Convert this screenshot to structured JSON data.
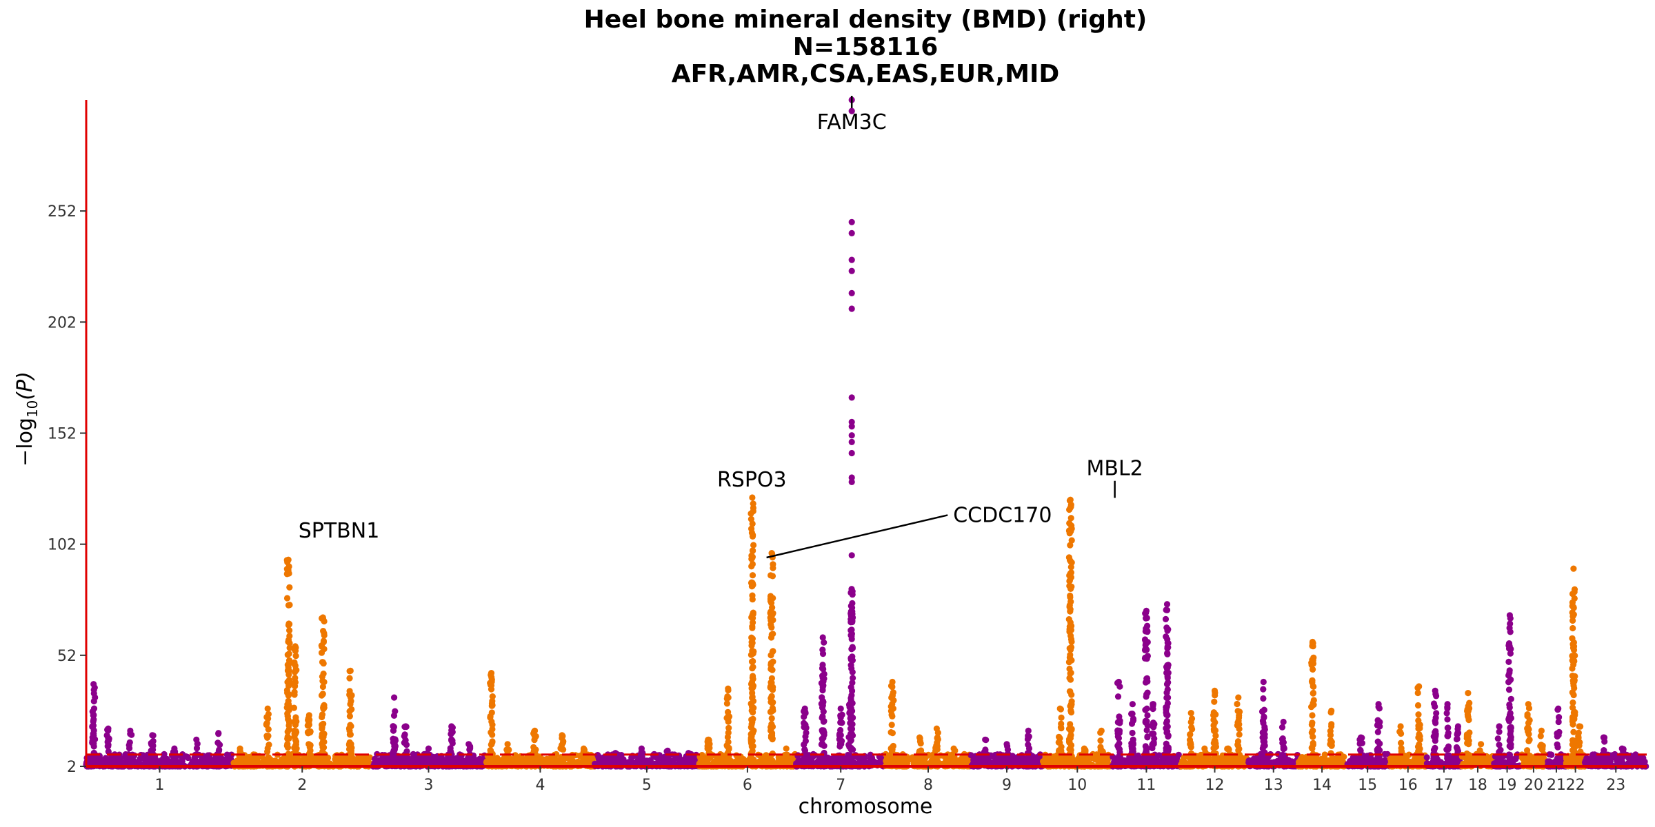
{
  "chart_data": {
    "type": "scatter",
    "title": [
      "Heel bone mineral density (BMD) (right)",
      "N=158116",
      "AFR,AMR,CSA,EAS,EUR,MID"
    ],
    "xlabel": "chromosome",
    "ylabel_main": "−log",
    "ylabel_sub": "10",
    "ylabel_paren": "(P)",
    "ylim": [
      2,
      302
    ],
    "yticks": [
      2,
      52,
      102,
      152,
      202,
      252
    ],
    "significance_line": 7.3,
    "grid": false,
    "colors": {
      "odd": "#8B008B",
      "even": "#EE7700",
      "line": "#E00000",
      "text": "#000000"
    },
    "chromosomes": [
      {
        "label": "1",
        "start": 0.0,
        "end": 1.0,
        "peaks": [
          [
            0.05,
            39
          ],
          [
            0.15,
            19
          ],
          [
            0.3,
            18
          ],
          [
            0.45,
            16
          ],
          [
            0.6,
            10
          ],
          [
            0.75,
            14
          ],
          [
            0.9,
            17
          ]
        ]
      },
      {
        "label": "2",
        "start": 1.0,
        "end": 1.94,
        "peaks": [
          [
            0.05,
            10
          ],
          [
            0.25,
            28
          ],
          [
            0.4,
            95
          ],
          [
            0.45,
            56
          ],
          [
            0.55,
            25
          ],
          [
            0.65,
            69
          ],
          [
            0.85,
            45
          ]
        ]
      },
      {
        "label": "3",
        "start": 1.94,
        "end": 2.72,
        "peaks": [
          [
            0.2,
            33
          ],
          [
            0.3,
            20
          ],
          [
            0.5,
            10
          ],
          [
            0.7,
            20
          ],
          [
            0.85,
            12
          ]
        ]
      },
      {
        "label": "4",
        "start": 2.72,
        "end": 3.46,
        "peaks": [
          [
            0.05,
            44
          ],
          [
            0.2,
            12
          ],
          [
            0.45,
            18
          ],
          [
            0.7,
            16
          ],
          [
            0.9,
            10
          ]
        ]
      },
      {
        "label": "5",
        "start": 3.46,
        "end": 4.17,
        "peaks": [
          [
            0.2,
            8
          ],
          [
            0.45,
            10
          ],
          [
            0.7,
            9
          ],
          [
            0.9,
            8
          ]
        ]
      },
      {
        "label": "6",
        "start": 4.17,
        "end": 4.83,
        "peaks": [
          [
            0.1,
            14
          ],
          [
            0.3,
            37
          ],
          [
            0.55,
            123
          ],
          [
            0.75,
            98
          ],
          [
            0.9,
            10
          ]
        ]
      },
      {
        "label": "7",
        "start": 4.83,
        "end": 5.44,
        "peaks": [
          [
            0.1,
            28
          ],
          [
            0.3,
            60
          ],
          [
            0.5,
            28
          ],
          [
            0.6,
            30
          ]
        ]
      },
      {
        "label": "8",
        "start": 5.44,
        "end": 6.02,
        "peaks": [
          [
            0.08,
            40
          ],
          [
            0.4,
            15
          ],
          [
            0.6,
            19
          ],
          [
            0.8,
            10
          ]
        ]
      },
      {
        "label": "9",
        "start": 6.02,
        "end": 6.51,
        "peaks": [
          [
            0.2,
            14
          ],
          [
            0.5,
            12
          ],
          [
            0.8,
            18
          ]
        ]
      },
      {
        "label": "10",
        "start": 6.51,
        "end": 6.98,
        "peaks": [
          [
            0.25,
            28
          ],
          [
            0.4,
            122
          ],
          [
            0.6,
            10
          ],
          [
            0.85,
            18
          ]
        ]
      },
      {
        "label": "11",
        "start": 6.98,
        "end": 7.45,
        "peaks": [
          [
            0.1,
            40
          ],
          [
            0.3,
            30
          ],
          [
            0.5,
            72
          ],
          [
            0.6,
            30
          ],
          [
            0.8,
            75
          ]
        ]
      },
      {
        "label": "12",
        "start": 7.45,
        "end": 7.91,
        "peaks": [
          [
            0.15,
            26
          ],
          [
            0.35,
            10
          ],
          [
            0.5,
            36
          ],
          [
            0.7,
            10
          ],
          [
            0.85,
            33
          ]
        ]
      },
      {
        "label": "13",
        "start": 7.91,
        "end": 8.25,
        "peaks": [
          [
            0.3,
            40
          ],
          [
            0.7,
            22
          ]
        ]
      },
      {
        "label": "14",
        "start": 8.25,
        "end": 8.57,
        "peaks": [
          [
            0.3,
            58
          ],
          [
            0.7,
            27
          ]
        ]
      },
      {
        "label": "15",
        "start": 8.57,
        "end": 8.87,
        "peaks": [
          [
            0.35,
            15
          ],
          [
            0.75,
            30
          ]
        ]
      },
      {
        "label": "16",
        "start": 8.87,
        "end": 9.12,
        "peaks": [
          [
            0.3,
            20
          ],
          [
            0.8,
            38
          ]
        ]
      },
      {
        "label": "17",
        "start": 9.12,
        "end": 9.36,
        "peaks": [
          [
            0.25,
            36
          ],
          [
            0.6,
            30
          ],
          [
            0.9,
            20
          ]
        ]
      },
      {
        "label": "18",
        "start": 9.36,
        "end": 9.58,
        "peaks": [
          [
            0.2,
            35
          ],
          [
            0.6,
            12
          ]
        ]
      },
      {
        "label": "19",
        "start": 9.58,
        "end": 9.76,
        "peaks": [
          [
            0.2,
            20
          ],
          [
            0.6,
            70
          ]
        ]
      },
      {
        "label": "20",
        "start": 9.76,
        "end": 9.94,
        "peaks": [
          [
            0.3,
            30
          ],
          [
            0.8,
            18
          ]
        ]
      },
      {
        "label": "21",
        "start": 9.94,
        "end": 10.07,
        "peaks": [
          [
            0.6,
            28
          ]
        ]
      },
      {
        "label": "22",
        "start": 10.07,
        "end": 10.2,
        "peaks": [
          [
            0.4,
            91
          ],
          [
            0.7,
            20
          ]
        ]
      },
      {
        "label": "23",
        "start": 10.2,
        "end": 10.62,
        "peaks": [
          [
            0.3,
            15
          ],
          [
            0.6,
            10
          ]
        ]
      }
    ],
    "highlight_points": [
      {
        "x": 5.21,
        "values": [
          97,
          130,
          132,
          143,
          148,
          151,
          155,
          157,
          168,
          208,
          215,
          225,
          230,
          242,
          247,
          297,
          302
        ]
      }
    ],
    "annotations": [
      {
        "label": "FAM3C",
        "x": 5.21,
        "y": 289,
        "point_y": 302
      },
      {
        "label": "RSPO3",
        "x": 4.53,
        "y": 128,
        "point_y": 123
      },
      {
        "label": "CCDC170",
        "x": 5.9,
        "y": 112,
        "point_y": 96,
        "point_x": 4.63,
        "anchor": "start"
      },
      {
        "label": "SPTBN1",
        "x": 1.72,
        "y": 105,
        "point_y": 100
      },
      {
        "label": "MBL2",
        "x": 7.0,
        "y": 133,
        "point_y": 121
      }
    ]
  }
}
